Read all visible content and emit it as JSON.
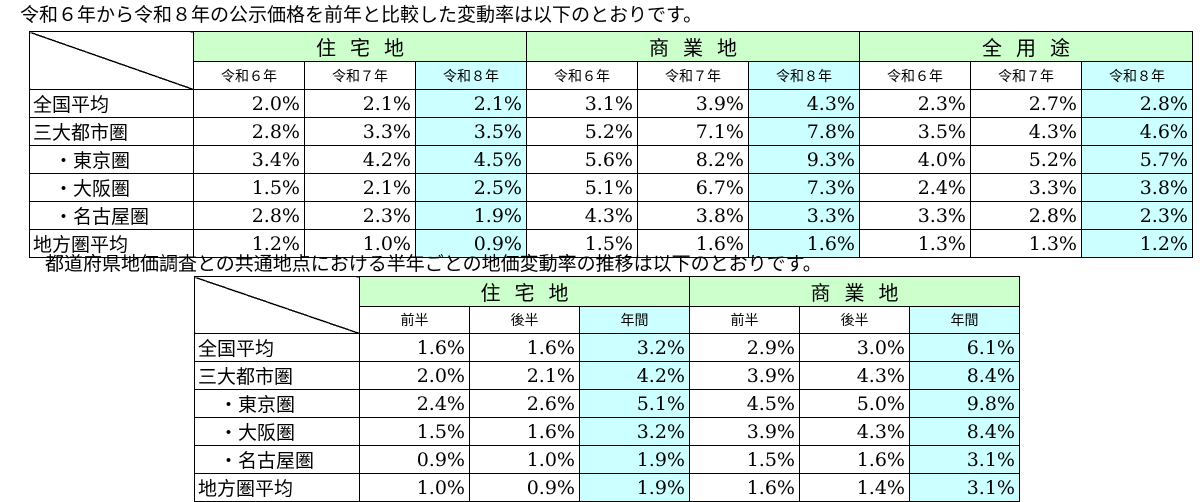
{
  "intro1": "令和６年から令和８年の公示価格を前年と比較した変動率は以下のとおりです。",
  "intro2": "都道府県地価調査との共通地点における半年ごとの地価変動率の推移は以下のとおりです。",
  "table1": {
    "groups": [
      "住宅地",
      "商業地",
      "全用途"
    ],
    "periods": [
      "令和６年",
      "令和７年",
      "令和８年"
    ],
    "rows": [
      {
        "label": "全国平均",
        "values": [
          "2.0%",
          "2.1%",
          "2.1%",
          "3.1%",
          "3.9%",
          "4.3%",
          "2.3%",
          "2.7%",
          "2.8%"
        ]
      },
      {
        "label": "三大都市圏",
        "values": [
          "2.8%",
          "3.3%",
          "3.5%",
          "5.2%",
          "7.1%",
          "7.8%",
          "3.5%",
          "4.3%",
          "4.6%"
        ]
      },
      {
        "label": "・東京圏",
        "values": [
          "3.4%",
          "4.2%",
          "4.5%",
          "5.6%",
          "8.2%",
          "9.3%",
          "4.0%",
          "5.2%",
          "5.7%"
        ]
      },
      {
        "label": "・大阪圏",
        "values": [
          "1.5%",
          "2.1%",
          "2.5%",
          "5.1%",
          "6.7%",
          "7.3%",
          "2.4%",
          "3.3%",
          "3.8%"
        ]
      },
      {
        "label": "・名古屋圏",
        "values": [
          "2.8%",
          "2.3%",
          "1.9%",
          "4.3%",
          "3.8%",
          "3.3%",
          "3.3%",
          "2.8%",
          "2.3%"
        ]
      },
      {
        "label": "地方圏平均",
        "values": [
          "1.2%",
          "1.0%",
          "0.9%",
          "1.5%",
          "1.6%",
          "1.6%",
          "1.3%",
          "1.3%",
          "1.2%"
        ]
      }
    ]
  },
  "table2": {
    "groups": [
      "住宅地",
      "商業地"
    ],
    "periods": [
      "前半",
      "後半",
      "年間"
    ],
    "rows": [
      {
        "label": "全国平均",
        "values": [
          "1.6%",
          "1.6%",
          "3.2%",
          "2.9%",
          "3.0%",
          "6.1%"
        ]
      },
      {
        "label": "三大都市圏",
        "values": [
          "2.0%",
          "2.1%",
          "4.2%",
          "3.9%",
          "4.3%",
          "8.4%"
        ]
      },
      {
        "label": "・東京圏",
        "values": [
          "2.4%",
          "2.6%",
          "5.1%",
          "4.5%",
          "5.0%",
          "9.8%"
        ]
      },
      {
        "label": "・大阪圏",
        "values": [
          "1.5%",
          "1.6%",
          "3.2%",
          "3.9%",
          "4.3%",
          "8.4%"
        ]
      },
      {
        "label": "・名古屋圏",
        "values": [
          "0.9%",
          "1.0%",
          "1.9%",
          "1.5%",
          "1.6%",
          "3.1%"
        ]
      },
      {
        "label": "地方圏平均",
        "values": [
          "1.0%",
          "0.9%",
          "1.9%",
          "1.6%",
          "1.4%",
          "3.1%"
        ]
      }
    ]
  },
  "colors": {
    "group_header_bg": "#ccffcc",
    "highlight_bg": "#ccffff"
  }
}
